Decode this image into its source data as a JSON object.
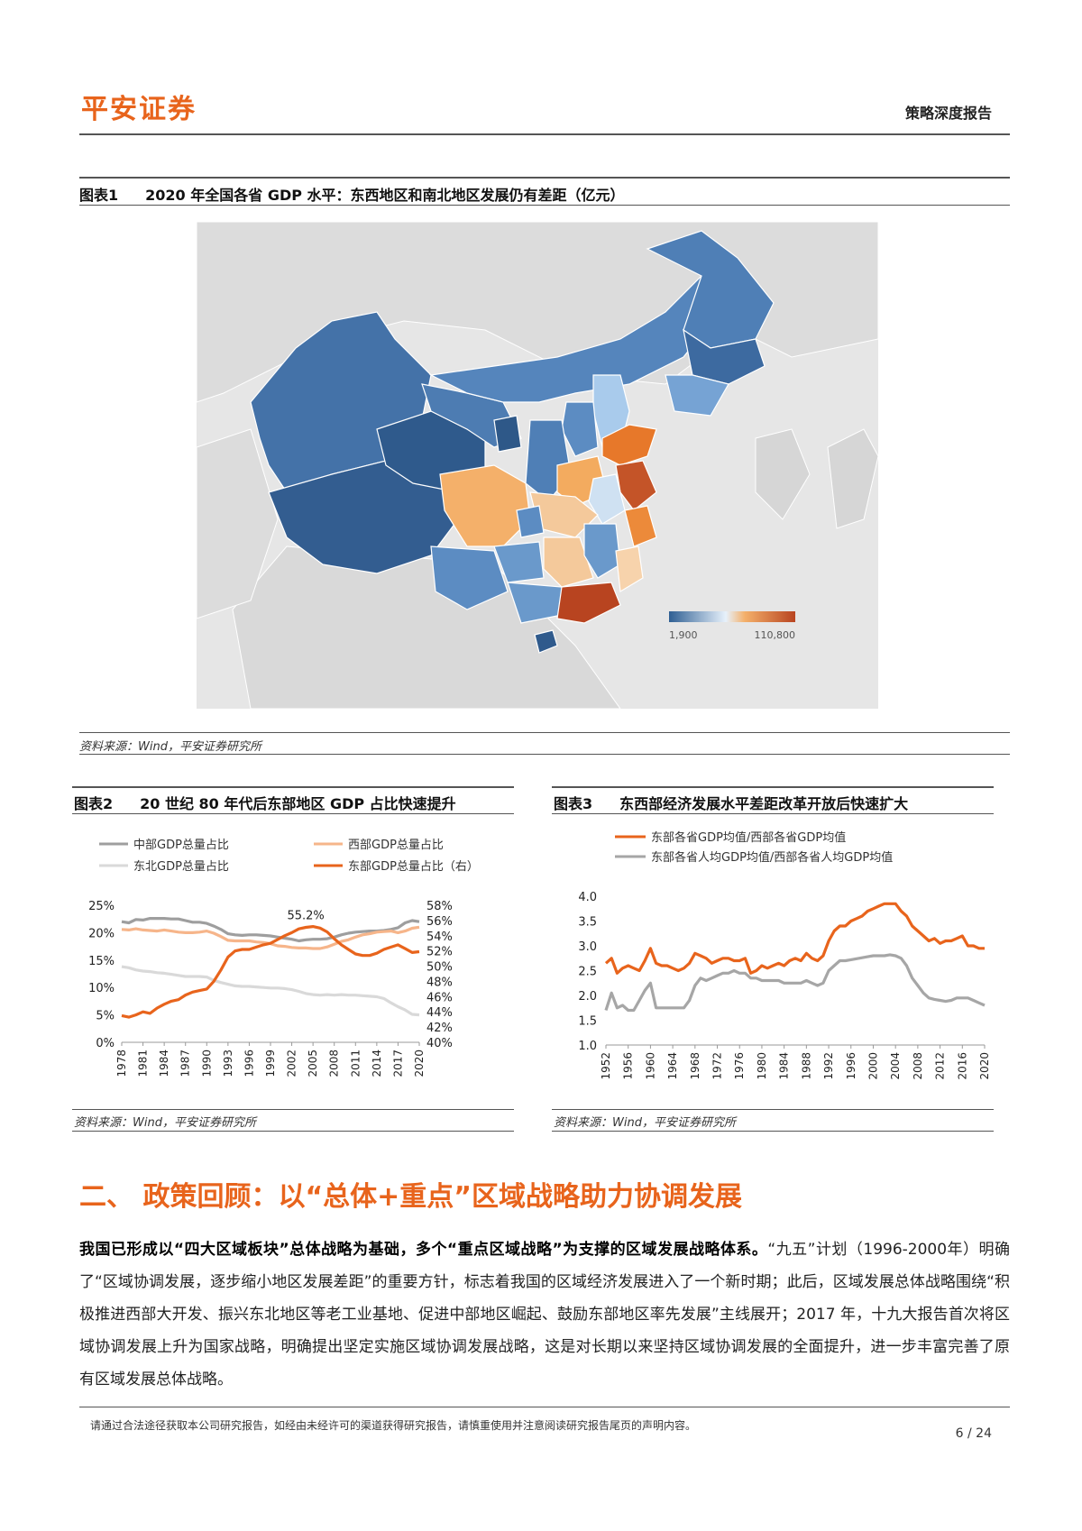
{
  "header": {
    "logo": "平安证券",
    "doc_type": "策略深度报告"
  },
  "figure1": {
    "num": "图表1",
    "title": "2020 年全国各省 GDP 水平：东西地区和南北地区发展仍有差距（亿元）",
    "legend_min": "1,900",
    "legend_max": "110,800",
    "colors": {
      "low": "#2f5f93",
      "mid": "#e7f1fb",
      "high": "#e8641c",
      "max": "#b84420"
    },
    "source": "资料来源：Wind，平安证券研究所"
  },
  "figure2": {
    "num": "图表2",
    "title": "20 世纪 80 年代后东部地区 GDP 占比快速提升",
    "source": "资料来源：Wind，平安证券研究所"
  },
  "figure3": {
    "num": "图表3",
    "title": "东西部经济发展水平差距改革开放后快速扩大",
    "source": "资料来源：Wind，平安证券研究所"
  },
  "chart_data": [
    {
      "type": "line",
      "x": [
        1978,
        1979,
        1980,
        1981,
        1982,
        1983,
        1984,
        1985,
        1986,
        1987,
        1988,
        1989,
        1990,
        1991,
        1992,
        1993,
        1994,
        1995,
        1996,
        1997,
        1998,
        1999,
        2000,
        2001,
        2002,
        2003,
        2004,
        2005,
        2006,
        2007,
        2008,
        2009,
        2010,
        2011,
        2012,
        2013,
        2014,
        2015,
        2016,
        2017,
        2018,
        2019,
        2020
      ],
      "xticks": [
        "1978",
        "1981",
        "1984",
        "1987",
        "1990",
        "1993",
        "1996",
        "1999",
        "2002",
        "2005",
        "2008",
        "2011",
        "2014",
        "2017",
        "2020"
      ],
      "yticks_left": [
        "25%",
        "20%",
        "15%",
        "10%",
        "5%",
        "0%"
      ],
      "yticks_right": [
        "58%",
        "56%",
        "54%",
        "52%",
        "50%",
        "48%",
        "46%",
        "44%",
        "42%",
        "40%"
      ],
      "ylim_left": [
        0,
        25
      ],
      "ylim_right": [
        40,
        58
      ],
      "annotation": "55.2%",
      "series": [
        {
          "name": "中部GDP总量占比",
          "axis": "left",
          "color": "#9e9e9e",
          "values": [
            22.0,
            21.8,
            22.4,
            22.3,
            22.6,
            22.6,
            22.6,
            22.5,
            22.5,
            22.2,
            21.9,
            21.9,
            21.7,
            21.2,
            20.6,
            19.8,
            19.6,
            19.5,
            19.6,
            19.6,
            19.5,
            19.4,
            19.2,
            19.0,
            18.8,
            18.5,
            18.7,
            18.8,
            18.8,
            18.9,
            19.2,
            19.6,
            19.9,
            20.1,
            20.2,
            20.3,
            20.3,
            20.4,
            20.6,
            20.9,
            21.8,
            22.2,
            22.0
          ]
        },
        {
          "name": "西部GDP总量占比",
          "axis": "left",
          "color": "#f6b58a",
          "values": [
            20.6,
            20.5,
            20.7,
            20.5,
            20.4,
            20.3,
            20.5,
            20.3,
            20.1,
            20.0,
            20.0,
            20.1,
            20.3,
            19.9,
            19.3,
            18.6,
            18.5,
            18.5,
            18.5,
            18.3,
            18.2,
            18.0,
            17.6,
            17.5,
            17.3,
            17.2,
            17.2,
            17.1,
            17.1,
            17.4,
            17.9,
            18.4,
            18.7,
            19.2,
            19.6,
            19.8,
            20.1,
            20.2,
            20.3,
            20.0,
            20.3,
            20.8,
            21.0
          ]
        },
        {
          "name": "东北GDP总量占比",
          "axis": "left",
          "color": "#d9d9d9",
          "values": [
            13.8,
            13.6,
            13.2,
            13.0,
            12.9,
            12.7,
            12.6,
            12.4,
            12.2,
            12.0,
            12.0,
            12.0,
            11.9,
            11.3,
            10.9,
            10.6,
            10.3,
            10.2,
            10.2,
            10.1,
            10.0,
            9.9,
            9.9,
            9.8,
            9.6,
            9.3,
            8.9,
            8.7,
            8.6,
            8.7,
            8.6,
            8.7,
            8.6,
            8.6,
            8.5,
            8.4,
            8.3,
            8.0,
            7.2,
            6.5,
            5.9,
            5.1,
            5.0
          ]
        },
        {
          "name": "东部GDP总量占比（右）",
          "axis": "right",
          "color": "#e8641c",
          "values": [
            43.5,
            43.3,
            43.6,
            44.0,
            43.8,
            44.5,
            45.0,
            45.4,
            45.6,
            46.2,
            46.6,
            46.8,
            47.0,
            48.0,
            49.5,
            51.2,
            52.0,
            52.2,
            52.2,
            52.5,
            52.8,
            53.0,
            53.5,
            54.0,
            54.4,
            54.9,
            55.1,
            55.2,
            55.0,
            54.5,
            53.6,
            52.8,
            52.2,
            51.6,
            51.4,
            51.4,
            51.7,
            52.2,
            52.5,
            52.8,
            52.3,
            51.8,
            51.9
          ]
        }
      ]
    },
    {
      "type": "line",
      "x": [
        1952,
        1953,
        1954,
        1955,
        1956,
        1957,
        1958,
        1959,
        1960,
        1961,
        1962,
        1963,
        1964,
        1965,
        1966,
        1967,
        1968,
        1969,
        1970,
        1971,
        1972,
        1973,
        1974,
        1975,
        1976,
        1977,
        1978,
        1979,
        1980,
        1981,
        1982,
        1983,
        1984,
        1985,
        1986,
        1987,
        1988,
        1989,
        1990,
        1991,
        1992,
        1993,
        1994,
        1995,
        1996,
        1997,
        1998,
        1999,
        2000,
        2001,
        2002,
        2003,
        2004,
        2005,
        2006,
        2007,
        2008,
        2009,
        2010,
        2011,
        2012,
        2013,
        2014,
        2015,
        2016,
        2017,
        2018,
        2019,
        2020
      ],
      "xticks": [
        "1952",
        "1956",
        "1960",
        "1964",
        "1968",
        "1972",
        "1976",
        "1980",
        "1984",
        "1988",
        "1992",
        "1996",
        "2000",
        "2004",
        "2008",
        "2012",
        "2016",
        "2020"
      ],
      "yticks": [
        "4.0",
        "3.5",
        "3.0",
        "2.5",
        "2.0",
        "1.5",
        "1.0"
      ],
      "ylim": [
        1.0,
        4.0
      ],
      "series": [
        {
          "name": "东部各省GDP均值/西部各省GDP均值",
          "color": "#e8641c",
          "values": [
            2.65,
            2.75,
            2.45,
            2.55,
            2.6,
            2.55,
            2.5,
            2.7,
            2.95,
            2.65,
            2.6,
            2.6,
            2.55,
            2.5,
            2.55,
            2.65,
            2.85,
            2.8,
            2.75,
            2.65,
            2.7,
            2.75,
            2.75,
            2.7,
            2.7,
            2.75,
            2.45,
            2.5,
            2.6,
            2.55,
            2.6,
            2.65,
            2.6,
            2.7,
            2.75,
            2.7,
            2.85,
            2.75,
            2.7,
            2.8,
            3.1,
            3.3,
            3.4,
            3.4,
            3.5,
            3.55,
            3.6,
            3.7,
            3.75,
            3.8,
            3.85,
            3.85,
            3.85,
            3.7,
            3.6,
            3.4,
            3.3,
            3.2,
            3.1,
            3.15,
            3.05,
            3.1,
            3.1,
            3.15,
            3.2,
            3.0,
            3.0,
            2.95,
            2.95
          ]
        },
        {
          "name": "东部各省人均GDP均值/西部各省人均GDP均值",
          "color": "#a6a6a6",
          "values": [
            1.7,
            2.05,
            1.75,
            1.8,
            1.7,
            1.7,
            1.9,
            2.1,
            2.25,
            1.75,
            1.75,
            1.75,
            1.75,
            1.75,
            1.75,
            1.9,
            2.2,
            2.35,
            2.3,
            2.35,
            2.4,
            2.45,
            2.45,
            2.5,
            2.45,
            2.45,
            2.35,
            2.35,
            2.3,
            2.3,
            2.3,
            2.3,
            2.25,
            2.25,
            2.25,
            2.25,
            2.3,
            2.25,
            2.2,
            2.25,
            2.5,
            2.6,
            2.7,
            2.7,
            2.72,
            2.74,
            2.76,
            2.78,
            2.8,
            2.8,
            2.8,
            2.82,
            2.8,
            2.75,
            2.6,
            2.35,
            2.2,
            2.05,
            1.95,
            1.92,
            1.9,
            1.88,
            1.9,
            1.95,
            1.95,
            1.95,
            1.9,
            1.85,
            1.8
          ]
        }
      ]
    }
  ],
  "section": {
    "title": "二、 政策回顾：以“总体+重点”区域战略助力协调发展",
    "para_bold": "我国已形成以“四大区域板块”总体战略为基础，多个“重点区域战略”为支撑的区域发展战略体系。",
    "para_rest": "“九五”计划（1996-2000年）明确了“区域协调发展，逐步缩小地区发展差距”的重要方针，标志着我国的区域经济发展进入了一个新时期；此后，区域发展总体战略围绕“积极推进西部大开发、振兴东北地区等老工业基地、促进中部地区崛起、鼓励东部地区率先发展”主线展开；2017 年，十九大报告首次将区域协调发展上升为国家战略，明确提出坚定实施区域协调发展战略，这是对长期以来坚持区域协调发展的全面提升，进一步丰富完善了原有区域发展总体战略。"
  },
  "footer": {
    "note": "请通过合法途径获取本公司研究报告，如经由未经许可的渠道获得研究报告，请慎重使用并注意阅读研究报告尾页的声明内容。",
    "page": "6 / 24"
  }
}
